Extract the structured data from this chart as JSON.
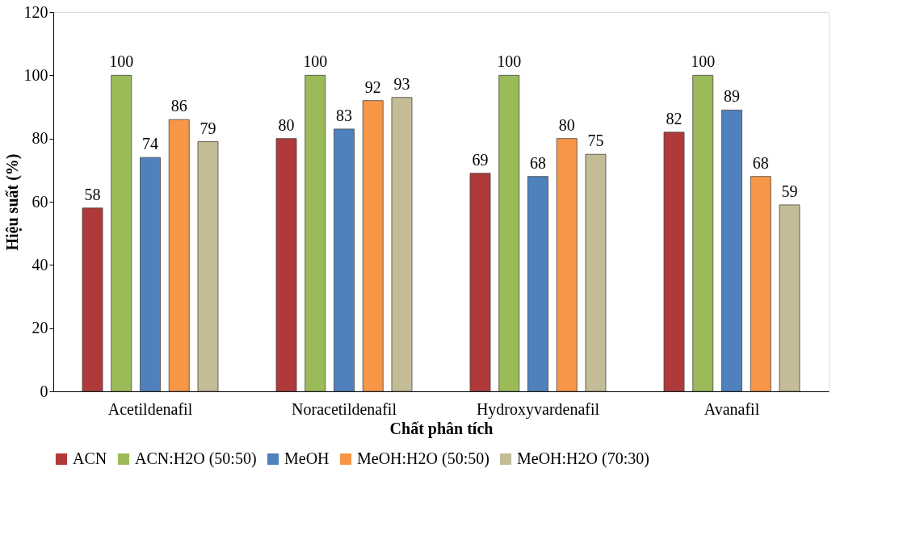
{
  "chart_data": {
    "type": "bar",
    "xlabel": "Chất phân tích",
    "ylabel": "Hiệu suất (%)",
    "categories": [
      "Acetildenafil",
      "Noracetildenafil",
      "Hydroxyvardenafil",
      "Avanafil"
    ],
    "series": [
      {
        "name": "ACN",
        "color": "#b03a3a",
        "values": [
          58,
          80,
          69,
          82
        ]
      },
      {
        "name": "ACN:H2O (50:50)",
        "color": "#9bbb59",
        "values": [
          100,
          100,
          100,
          100
        ]
      },
      {
        "name": "MeOH",
        "color": "#4f81bd",
        "values": [
          74,
          83,
          68,
          89
        ]
      },
      {
        "name": "MeOH:H2O (50:50)",
        "color": "#f79646",
        "values": [
          86,
          92,
          80,
          68
        ]
      },
      {
        "name": "MeOH:H2O (70:30)",
        "color": "#c4bc96",
        "values": [
          79,
          93,
          75,
          59
        ]
      }
    ],
    "ylim": [
      0,
      120
    ],
    "yticks": [
      0,
      20,
      40,
      60,
      80,
      100,
      120
    ],
    "grid": false,
    "legend": "bottom",
    "data_labels": true
  }
}
